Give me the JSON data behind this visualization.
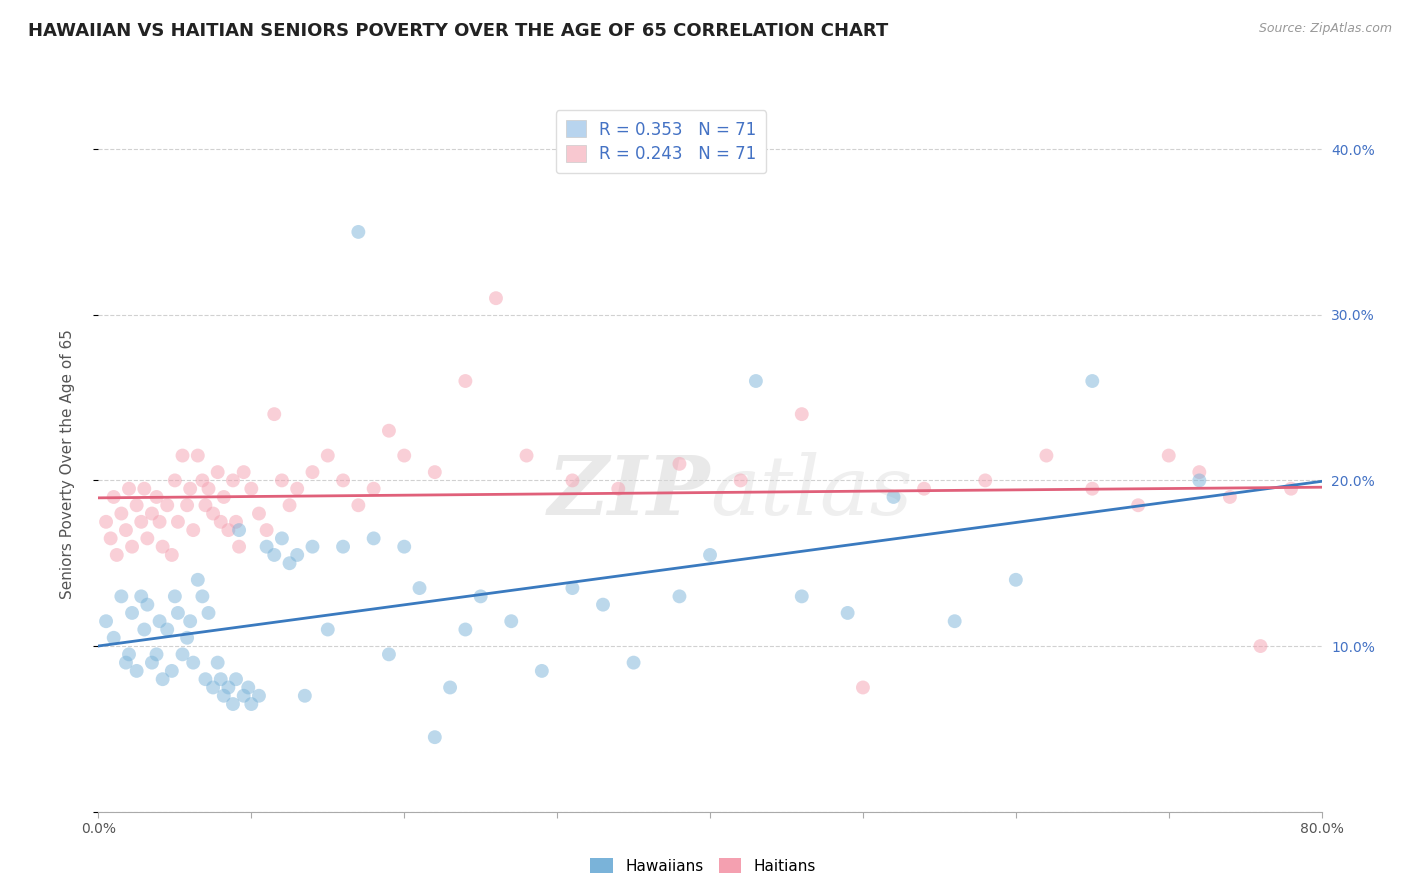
{
  "title": "HAWAIIAN VS HAITIAN SENIORS POVERTY OVER THE AGE OF 65 CORRELATION CHART",
  "source": "Source: ZipAtlas.com",
  "ylabel": "Seniors Poverty Over the Age of 65",
  "xlim": [
    0.0,
    0.8
  ],
  "ylim": [
    0.0,
    0.42
  ],
  "hawaiian_color": "#7ab3d9",
  "haitian_color": "#f4a0b0",
  "hawaiian_line_color": "#3a7abf",
  "haitian_line_color": "#e0607a",
  "legend_box_color": "#b8d4ee",
  "legend_box_color2": "#f8c8d0",
  "R_hawaiian": 0.353,
  "N_hawaiian": 71,
  "R_haitian": 0.243,
  "N_haitian": 71,
  "watermark_zip": "ZIP",
  "watermark_atlas": "atlas",
  "hawaiian_x": [
    0.005,
    0.01,
    0.015,
    0.018,
    0.02,
    0.022,
    0.025,
    0.028,
    0.03,
    0.032,
    0.035,
    0.038,
    0.04,
    0.042,
    0.045,
    0.048,
    0.05,
    0.052,
    0.055,
    0.058,
    0.06,
    0.062,
    0.065,
    0.068,
    0.07,
    0.072,
    0.075,
    0.078,
    0.08,
    0.082,
    0.085,
    0.088,
    0.09,
    0.092,
    0.095,
    0.098,
    0.1,
    0.105,
    0.11,
    0.115,
    0.12,
    0.125,
    0.13,
    0.135,
    0.14,
    0.15,
    0.16,
    0.17,
    0.18,
    0.19,
    0.2,
    0.21,
    0.22,
    0.23,
    0.24,
    0.25,
    0.27,
    0.29,
    0.31,
    0.33,
    0.35,
    0.38,
    0.4,
    0.43,
    0.46,
    0.49,
    0.52,
    0.56,
    0.6,
    0.65,
    0.72
  ],
  "hawaiian_y": [
    0.115,
    0.105,
    0.13,
    0.09,
    0.095,
    0.12,
    0.085,
    0.13,
    0.11,
    0.125,
    0.09,
    0.095,
    0.115,
    0.08,
    0.11,
    0.085,
    0.13,
    0.12,
    0.095,
    0.105,
    0.115,
    0.09,
    0.14,
    0.13,
    0.08,
    0.12,
    0.075,
    0.09,
    0.08,
    0.07,
    0.075,
    0.065,
    0.08,
    0.17,
    0.07,
    0.075,
    0.065,
    0.07,
    0.16,
    0.155,
    0.165,
    0.15,
    0.155,
    0.07,
    0.16,
    0.11,
    0.16,
    0.35,
    0.165,
    0.095,
    0.16,
    0.135,
    0.045,
    0.075,
    0.11,
    0.13,
    0.115,
    0.085,
    0.135,
    0.125,
    0.09,
    0.13,
    0.155,
    0.26,
    0.13,
    0.12,
    0.19,
    0.115,
    0.14,
    0.26,
    0.2
  ],
  "haitian_x": [
    0.005,
    0.008,
    0.01,
    0.012,
    0.015,
    0.018,
    0.02,
    0.022,
    0.025,
    0.028,
    0.03,
    0.032,
    0.035,
    0.038,
    0.04,
    0.042,
    0.045,
    0.048,
    0.05,
    0.052,
    0.055,
    0.058,
    0.06,
    0.062,
    0.065,
    0.068,
    0.07,
    0.072,
    0.075,
    0.078,
    0.08,
    0.082,
    0.085,
    0.088,
    0.09,
    0.092,
    0.095,
    0.1,
    0.105,
    0.11,
    0.115,
    0.12,
    0.125,
    0.13,
    0.14,
    0.15,
    0.16,
    0.17,
    0.18,
    0.19,
    0.2,
    0.22,
    0.24,
    0.26,
    0.28,
    0.31,
    0.34,
    0.38,
    0.42,
    0.46,
    0.5,
    0.54,
    0.58,
    0.62,
    0.65,
    0.68,
    0.7,
    0.72,
    0.74,
    0.76,
    0.78
  ],
  "haitian_y": [
    0.175,
    0.165,
    0.19,
    0.155,
    0.18,
    0.17,
    0.195,
    0.16,
    0.185,
    0.175,
    0.195,
    0.165,
    0.18,
    0.19,
    0.175,
    0.16,
    0.185,
    0.155,
    0.2,
    0.175,
    0.215,
    0.185,
    0.195,
    0.17,
    0.215,
    0.2,
    0.185,
    0.195,
    0.18,
    0.205,
    0.175,
    0.19,
    0.17,
    0.2,
    0.175,
    0.16,
    0.205,
    0.195,
    0.18,
    0.17,
    0.24,
    0.2,
    0.185,
    0.195,
    0.205,
    0.215,
    0.2,
    0.185,
    0.195,
    0.23,
    0.215,
    0.205,
    0.26,
    0.31,
    0.215,
    0.2,
    0.195,
    0.21,
    0.2,
    0.24,
    0.075,
    0.195,
    0.2,
    0.215,
    0.195,
    0.185,
    0.215,
    0.205,
    0.19,
    0.1,
    0.195
  ],
  "background_color": "#ffffff",
  "grid_color": "#cccccc",
  "title_fontsize": 13,
  "label_fontsize": 11,
  "tick_fontsize": 10,
  "marker_size": 100,
  "marker_alpha": 0.5,
  "line_width": 2.0
}
